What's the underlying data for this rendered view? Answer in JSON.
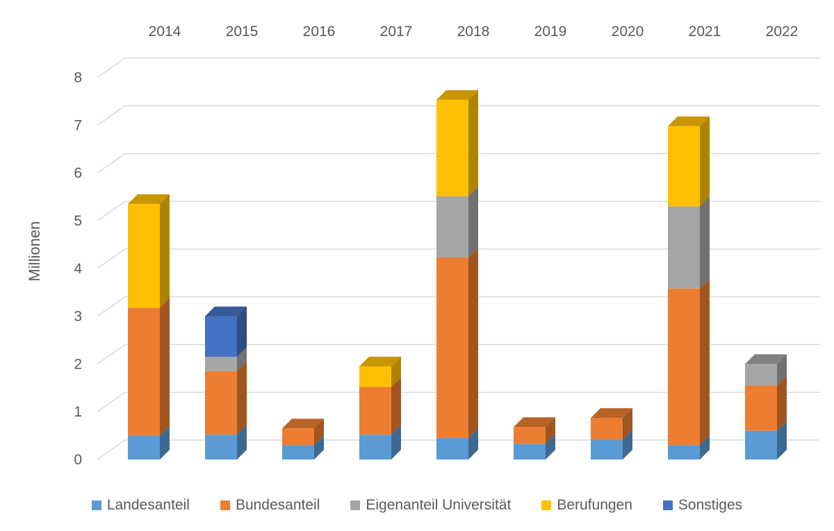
{
  "chart_data": {
    "type": "bar",
    "stacked": true,
    "three_d": true,
    "categories": [
      "2014",
      "2015",
      "2016",
      "2017",
      "2018",
      "2019",
      "2020",
      "2021",
      "2022"
    ],
    "category_axis_position": "top",
    "ylabel": "Millionen",
    "ylim": [
      0,
      8
    ],
    "yticks": [
      0,
      1,
      2,
      3,
      4,
      5,
      6,
      7,
      8
    ],
    "grid": true,
    "legend_position": "bottom",
    "series": [
      {
        "name": "Landesanteil",
        "color": "#5B9BD5",
        "values": [
          0.5,
          0.52,
          0.3,
          0.52,
          0.45,
          0.33,
          0.42,
          0.3,
          0.6
        ]
      },
      {
        "name": "Bundesanteil",
        "color": "#ED7D31",
        "values": [
          2.68,
          1.33,
          0.35,
          1.0,
          3.78,
          0.35,
          0.45,
          3.28,
          0.95
        ]
      },
      {
        "name": "Eigenanteil Universität",
        "color": "#A5A5A5",
        "values": [
          0.0,
          0.3,
          0.0,
          0.0,
          1.28,
          0.0,
          0.0,
          1.72,
          0.45
        ]
      },
      {
        "name": "Berufungen",
        "color": "#FFC000",
        "values": [
          2.17,
          0.0,
          0.0,
          0.43,
          2.02,
          0.0,
          0.0,
          1.68,
          0.0
        ]
      },
      {
        "name": "Sonstiges",
        "color": "#4472C4",
        "values": [
          0.0,
          0.85,
          0.0,
          0.0,
          0.0,
          0.0,
          0.0,
          0.0,
          0.0
        ]
      }
    ]
  }
}
